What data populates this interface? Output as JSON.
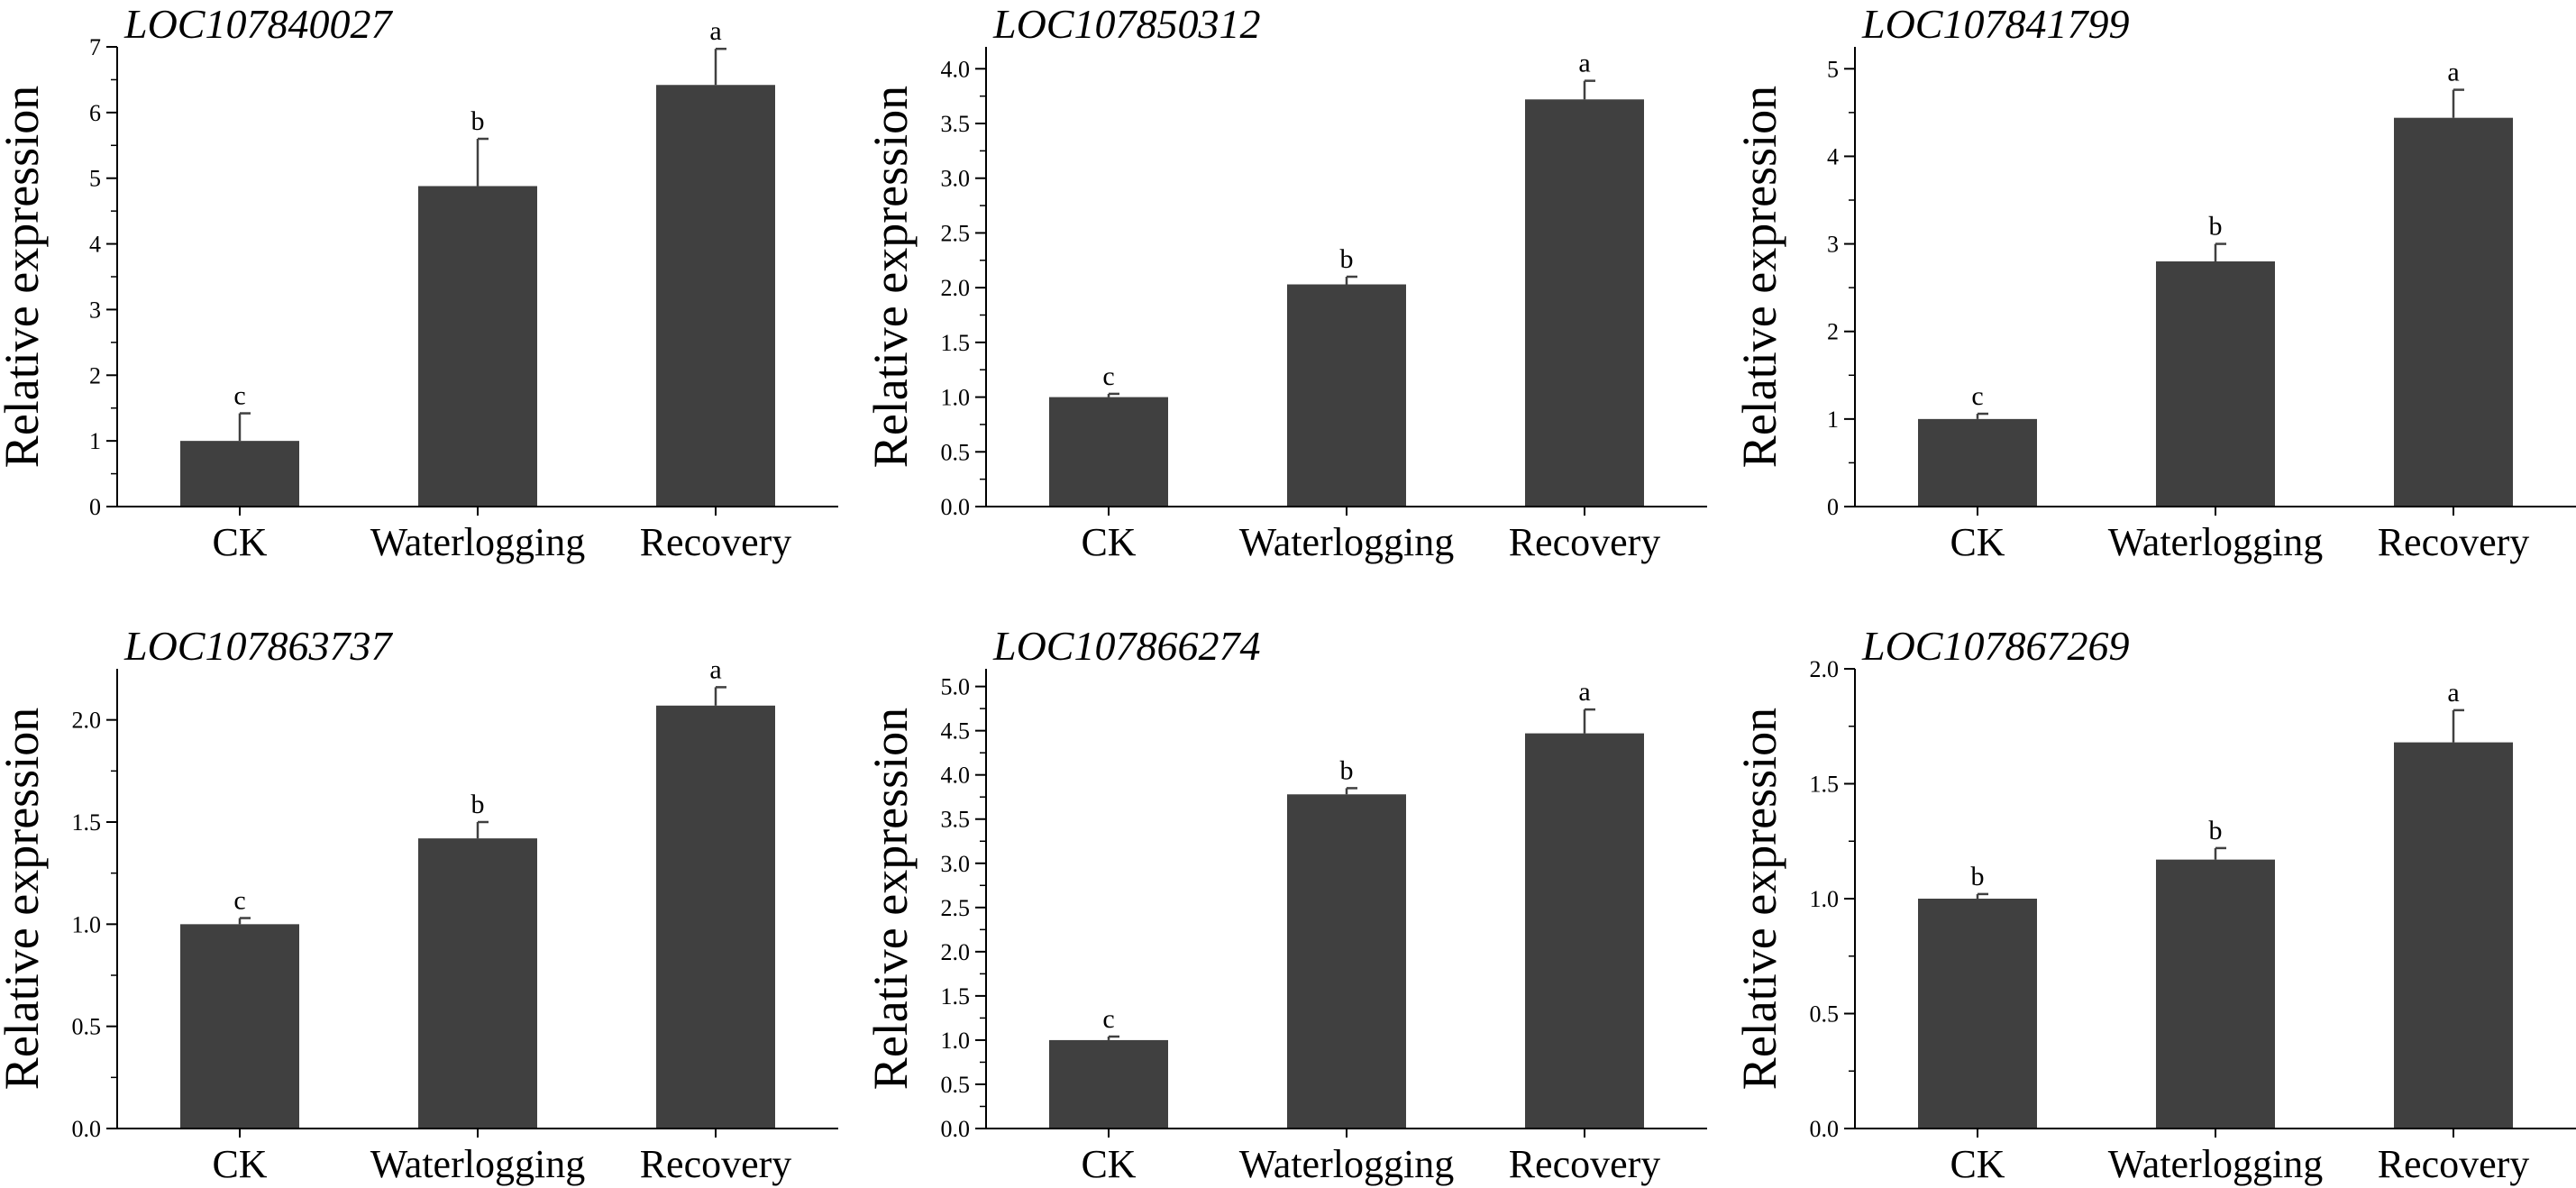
{
  "colors": {
    "bar_fill": "#404040",
    "axis": "#000000",
    "background": "#ffffff"
  },
  "chart_data": [
    {
      "type": "bar",
      "title": "LOC107840027",
      "ylabel": "Relative expression",
      "xlabel": "",
      "categories": [
        "CK",
        "Waterlogging",
        "Recovery"
      ],
      "values": [
        1.0,
        4.88,
        6.42
      ],
      "errors": [
        0.42,
        0.72,
        0.55
      ],
      "significance": [
        "c",
        "b",
        "a"
      ],
      "ylim": [
        0,
        7
      ],
      "yticks": [
        0,
        1,
        2,
        3,
        4,
        5,
        6,
        7
      ],
      "ytick_labels": [
        "0",
        "1",
        "2",
        "3",
        "4",
        "5",
        "6",
        "7"
      ],
      "grid": false
    },
    {
      "type": "bar",
      "title": "LOC107850312",
      "ylabel": "Relative expression",
      "xlabel": "",
      "categories": [
        "CK",
        "Waterlogging",
        "Recovery"
      ],
      "values": [
        1.0,
        2.03,
        3.72
      ],
      "errors": [
        0.03,
        0.07,
        0.17
      ],
      "significance": [
        "c",
        "b",
        "a"
      ],
      "ylim": [
        0,
        4.2
      ],
      "yticks": [
        0,
        0.5,
        1,
        1.5,
        2,
        2.5,
        3,
        3.5,
        4
      ],
      "ytick_labels": [
        "0.0",
        "0.5",
        "1.0",
        "1.5",
        "2.0",
        "2.5",
        "3.0",
        "3.5",
        "4.0"
      ],
      "grid": false
    },
    {
      "type": "bar",
      "title": "LOC107841799",
      "ylabel": "Relative expression",
      "xlabel": "",
      "categories": [
        "CK",
        "Waterlogging",
        "Recovery"
      ],
      "values": [
        1.0,
        2.8,
        4.44
      ],
      "errors": [
        0.06,
        0.2,
        0.32
      ],
      "significance": [
        "c",
        "b",
        "a"
      ],
      "ylim": [
        0,
        5.25
      ],
      "yticks": [
        0,
        1,
        2,
        3,
        4,
        5
      ],
      "ytick_labels": [
        "0",
        "1",
        "2",
        "3",
        "4",
        "5"
      ],
      "grid": false
    },
    {
      "type": "bar",
      "title": "LOC107863737",
      "ylabel": "Relative expression",
      "xlabel": "",
      "categories": [
        "CK",
        "Waterlogging",
        "Recovery"
      ],
      "values": [
        1.0,
        1.42,
        2.07
      ],
      "errors": [
        0.03,
        0.08,
        0.09
      ],
      "significance": [
        "c",
        "b",
        "a"
      ],
      "ylim": [
        0,
        2.25
      ],
      "yticks": [
        0,
        0.5,
        1,
        1.5,
        2
      ],
      "ytick_labels": [
        "0.0",
        "0.5",
        "1.0",
        "1.5",
        "2.0"
      ],
      "grid": false
    },
    {
      "type": "bar",
      "title": "LOC107866274",
      "ylabel": "Relative expression",
      "xlabel": "",
      "categories": [
        "CK",
        "Waterlogging",
        "Recovery"
      ],
      "values": [
        1.0,
        3.78,
        4.47
      ],
      "errors": [
        0.04,
        0.07,
        0.27
      ],
      "significance": [
        "c",
        "b",
        "a"
      ],
      "ylim": [
        0,
        5.2
      ],
      "yticks": [
        0,
        0.5,
        1,
        1.5,
        2,
        2.5,
        3,
        3.5,
        4,
        4.5,
        5
      ],
      "ytick_labels": [
        "0.0",
        "0.5",
        "1.0",
        "1.5",
        "2.0",
        "2.5",
        "3.0",
        "3.5",
        "4.0",
        "4.5",
        "5.0"
      ],
      "grid": false
    },
    {
      "type": "bar",
      "title": "LOC107867269",
      "ylabel": "Relative expression",
      "xlabel": "",
      "categories": [
        "CK",
        "Waterlogging",
        "Recovery"
      ],
      "values": [
        1.0,
        1.17,
        1.68
      ],
      "errors": [
        0.02,
        0.05,
        0.14
      ],
      "significance": [
        "b",
        "b",
        "a"
      ],
      "ylim": [
        0,
        2.0
      ],
      "yticks": [
        0,
        0.5,
        1,
        1.5,
        2
      ],
      "ytick_labels": [
        "0.0",
        "0.5",
        "1.0",
        "1.5",
        "2.0"
      ],
      "grid": false
    }
  ]
}
